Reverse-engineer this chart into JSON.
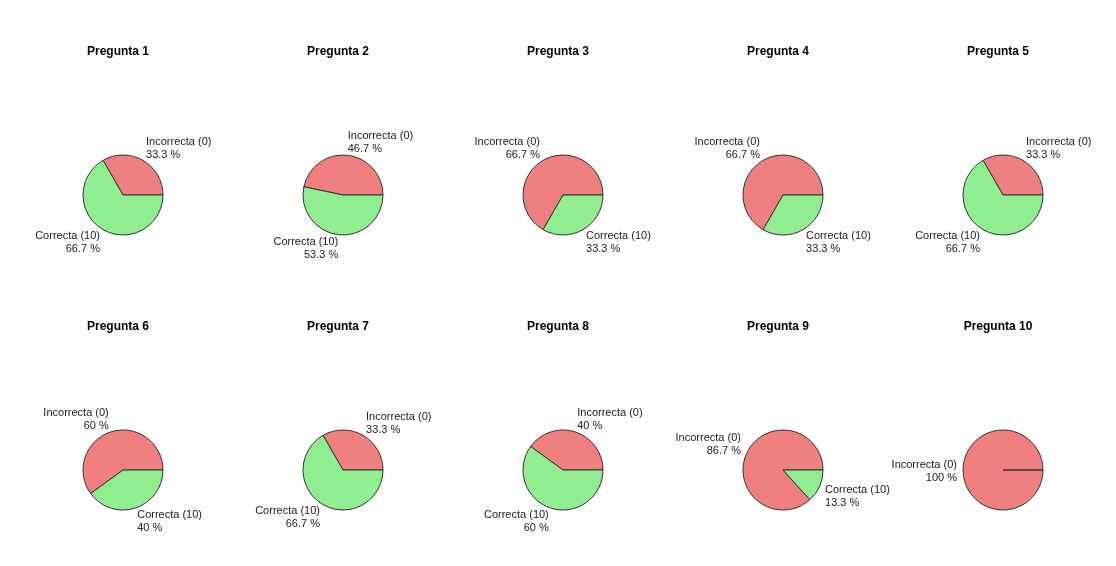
{
  "chart_data": [
    {
      "type": "pie",
      "title": "Pregunta 1",
      "categories": [
        "Incorrecta (0)",
        "Correcta (10)"
      ],
      "values": [
        33.3,
        66.7
      ],
      "colors": [
        "#f08080",
        "#90ee90"
      ],
      "value_labels": [
        "33.3 %",
        "66.7 %"
      ]
    },
    {
      "type": "pie",
      "title": "Pregunta 2",
      "categories": [
        "Incorrecta (0)",
        "Correcta (10)"
      ],
      "values": [
        46.7,
        53.3
      ],
      "colors": [
        "#f08080",
        "#90ee90"
      ],
      "value_labels": [
        "46.7 %",
        "53.3 %"
      ]
    },
    {
      "type": "pie",
      "title": "Pregunta 3",
      "categories": [
        "Incorrecta (0)",
        "Correcta (10)"
      ],
      "values": [
        66.7,
        33.3
      ],
      "colors": [
        "#f08080",
        "#90ee90"
      ],
      "value_labels": [
        "66.7 %",
        "33.3 %"
      ]
    },
    {
      "type": "pie",
      "title": "Pregunta 4",
      "categories": [
        "Incorrecta (0)",
        "Correcta (10)"
      ],
      "values": [
        66.7,
        33.3
      ],
      "colors": [
        "#f08080",
        "#90ee90"
      ],
      "value_labels": [
        "66.7 %",
        "33.3 %"
      ]
    },
    {
      "type": "pie",
      "title": "Pregunta 5",
      "categories": [
        "Incorrecta (0)",
        "Correcta (10)"
      ],
      "values": [
        33.3,
        66.7
      ],
      "colors": [
        "#f08080",
        "#90ee90"
      ],
      "value_labels": [
        "33.3 %",
        "66.7 %"
      ]
    },
    {
      "type": "pie",
      "title": "Pregunta 6",
      "categories": [
        "Incorrecta (0)",
        "Correcta (10)"
      ],
      "values": [
        60,
        40
      ],
      "colors": [
        "#f08080",
        "#90ee90"
      ],
      "value_labels": [
        "60 %",
        "40 %"
      ]
    },
    {
      "type": "pie",
      "title": "Pregunta 7",
      "categories": [
        "Incorrecta (0)",
        "Correcta (10)"
      ],
      "values": [
        33.3,
        66.7
      ],
      "colors": [
        "#f08080",
        "#90ee90"
      ],
      "value_labels": [
        "33.3 %",
        "66.7 %"
      ]
    },
    {
      "type": "pie",
      "title": "Pregunta 8",
      "categories": [
        "Incorrecta (0)",
        "Correcta (10)"
      ],
      "values": [
        40,
        60
      ],
      "colors": [
        "#f08080",
        "#90ee90"
      ],
      "value_labels": [
        "40 %",
        "60 %"
      ]
    },
    {
      "type": "pie",
      "title": "Pregunta 9",
      "categories": [
        "Incorrecta (0)",
        "Correcta (10)"
      ],
      "values": [
        86.7,
        13.3
      ],
      "colors": [
        "#f08080",
        "#90ee90"
      ],
      "value_labels": [
        "86.7 %",
        "13.3 %"
      ]
    },
    {
      "type": "pie",
      "title": "Pregunta 10",
      "categories": [
        "Incorrecta (0)",
        null
      ],
      "values": [
        100,
        0
      ],
      "colors": [
        "#f08080",
        "#90ee90"
      ],
      "value_labels": [
        "100 %",
        null
      ]
    }
  ]
}
